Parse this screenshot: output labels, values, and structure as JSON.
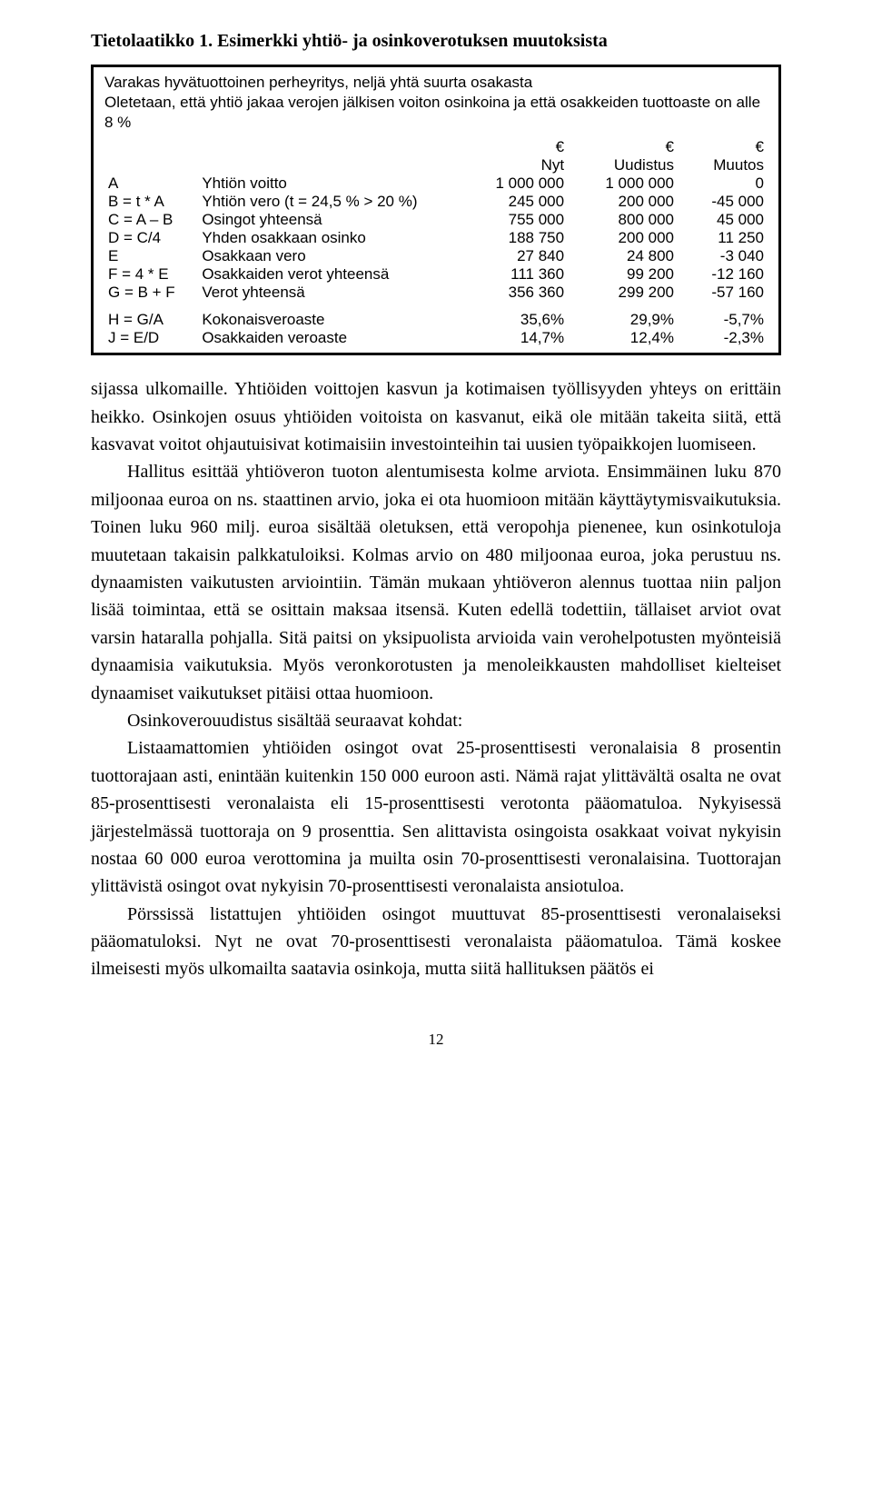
{
  "heading": "Tietolaatikko 1. Esimerkki yhtiö- ja osinkoverotuksen muutoksista",
  "box": {
    "title": "Varakas hyvätuottoinen perheyritys, neljä yhtä suurta osakasta\nOletetaan, että yhtiö jakaa verojen jälkisen voiton osinkoina ja että osakkeiden tuottoaste on alle 8 %",
    "cur": "€",
    "hdr_nyt": "Nyt",
    "hdr_uud": "Uudistus",
    "hdr_muu": "Muutos",
    "rows": [
      {
        "l": "A",
        "d": "Yhtiön voitto",
        "c1": "1 000 000",
        "c2": "1 000 000",
        "c3": "0"
      },
      {
        "l": "B = t * A",
        "d": "Yhtiön vero (t = 24,5 % > 20 %)",
        "c1": "245 000",
        "c2": "200 000",
        "c3": "-45 000"
      },
      {
        "l": "C = A – B",
        "d": "Osingot yhteensä",
        "c1": "755 000",
        "c2": "800 000",
        "c3": "45 000"
      },
      {
        "l": "D = C/4",
        "d": "Yhden osakkaan osinko",
        "c1": "188 750",
        "c2": "200 000",
        "c3": "11 250"
      },
      {
        "l": "E",
        "d": "Osakkaan vero",
        "c1": "27 840",
        "c2": "24 800",
        "c3": "-3 040"
      },
      {
        "l": "F = 4 * E",
        "d": "Osakkaiden verot yhteensä",
        "c1": "111 360",
        "c2": "99 200",
        "c3": "-12 160"
      },
      {
        "l": "G = B + F",
        "d": "Verot yhteensä",
        "c1": "356 360",
        "c2": "299 200",
        "c3": "-57 160"
      }
    ],
    "rows2": [
      {
        "l": "H = G/A",
        "d": "Kokonaisveroaste",
        "c1": "35,6%",
        "c2": "29,9%",
        "c3": "-5,7%"
      },
      {
        "l": "J = E/D",
        "d": "Osakkaiden veroaste",
        "c1": "14,7%",
        "c2": "12,4%",
        "c3": "-2,3%"
      }
    ]
  },
  "paragraphs": [
    "sijassa ulkomaille. Yhtiöiden voittojen kasvun ja kotimaisen työllisyyden yhteys on erittäin heikko. Osinkojen osuus yhtiöiden voitoista on kasvanut, eikä ole mitään takeita siitä, että kasvavat voitot ohjautuisivat kotimaisiin investointeihin tai uusien työpaikkojen luomiseen.",
    "Hallitus esittää yhtiöveron tuoton alentumisesta kolme arviota. Ensimmäinen luku 870 miljoonaa euroa on ns. staattinen arvio, joka ei ota huomioon mitään käyttäytymisvaikutuksia. Toinen luku 960 milj. euroa sisältää oletuksen, että veropohja pienenee, kun osinkotuloja muutetaan takaisin palkkatuloiksi. Kolmas arvio on 480 miljoonaa euroa, joka perustuu ns. dynaamisten vaikutusten arviointiin. Tämän mukaan yhtiöveron alennus tuottaa niin paljon lisää toimintaa, että se osittain maksaa itsensä. Kuten edellä todettiin, tällaiset arviot ovat varsin hataralla pohjalla. Sitä paitsi on yksipuolista arvioida vain verohelpotusten myönteisiä dynaamisia vaikutuksia. Myös veronkorotusten ja menoleikkausten mahdolliset kielteiset dynaamiset vaikutukset pitäisi ottaa huomioon.",
    "Osinkoverouudistus sisältää seuraavat kohdat:",
    "Listaamattomien yhtiöiden osingot ovat 25-prosenttisesti veronalaisia 8 prosentin tuottorajaan asti, enintään kuitenkin 150 000 euroon asti. Nämä rajat ylittävältä osalta ne ovat 85-prosenttisesti veronalaista eli 15-prosenttisesti verotonta pääomatuloa. Nykyisessä järjestelmässä tuottoraja on 9 prosenttia. Sen alittavista osingoista osakkaat voivat nykyisin nostaa 60 000 euroa verottomina ja muilta osin 70-prosenttisesti veronalaisina. Tuottorajan ylittävistä osingot ovat nykyisin 70-prosenttisesti veronalaista ansiotuloa.",
    "Pörssissä listattujen yhtiöiden osingot muuttuvat 85-prosenttisesti veronalaiseksi pääomatuloksi. Nyt ne ovat 70-prosenttisesti veronalaista pääomatuloa. Tämä koskee ilmeisesti myös ulkomailta saatavia osinkoja, mutta siitä hallituksen päätös ei"
  ],
  "page_number": "12"
}
